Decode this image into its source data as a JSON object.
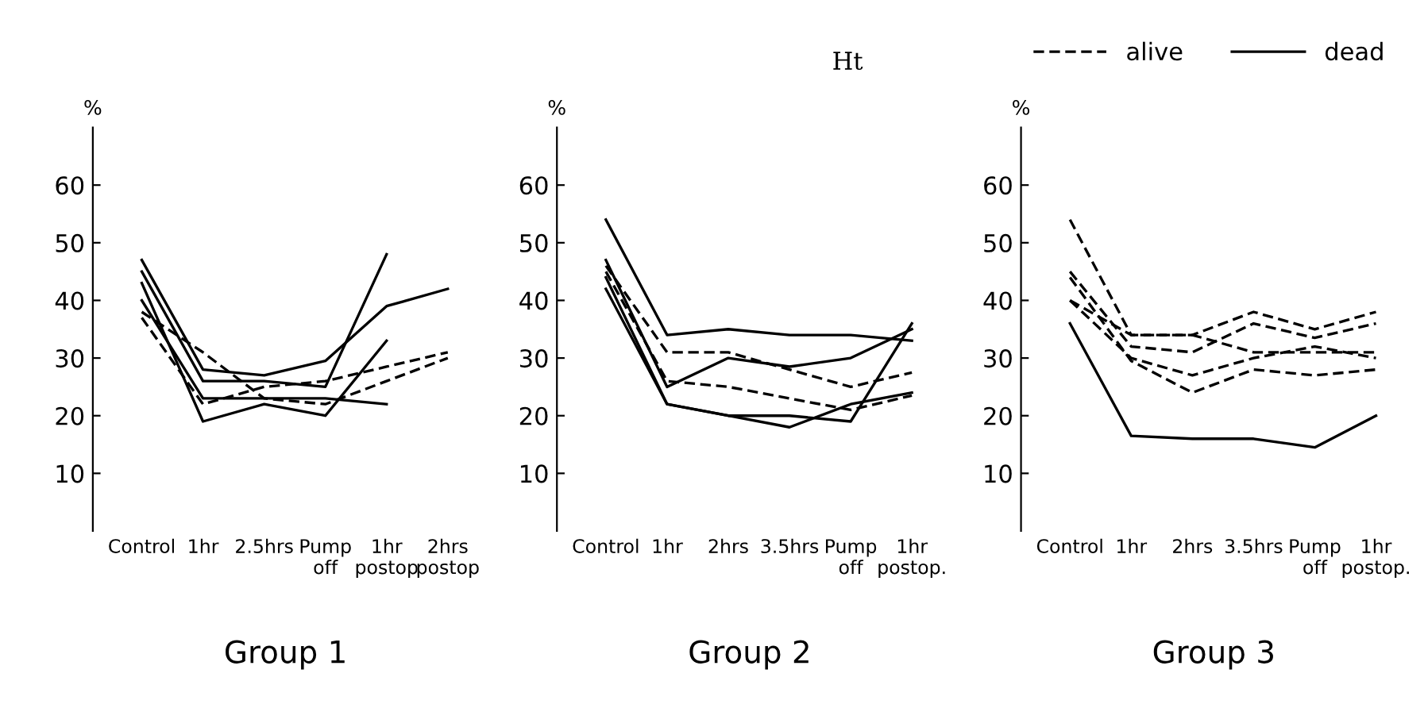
{
  "chart_data": [
    {
      "type": "line",
      "xlabel": "Group 1",
      "ylabel": "%",
      "categories": [
        "Control",
        "1hr",
        "2.5hrs",
        "Pump\noff",
        "1hr\npostop",
        "2hrs\npostop"
      ],
      "ylim": [
        0,
        70
      ],
      "yticks": [
        10,
        20,
        30,
        40,
        50,
        60
      ],
      "grid": false,
      "legend": false,
      "series": [
        {
          "color": "#000000",
          "line_style": "solid",
          "values": [
            47,
            28,
            27,
            29.5,
            39,
            42
          ]
        },
        {
          "color": "#000000",
          "line_style": "solid",
          "values": [
            45,
            26,
            26,
            25,
            48,
            null
          ]
        },
        {
          "color": "#000000",
          "line_style": "solid",
          "values": [
            43,
            19,
            22,
            20,
            33,
            null
          ]
        },
        {
          "color": "#000000",
          "line_style": "solid",
          "values": [
            40,
            23,
            23,
            23,
            22,
            null
          ]
        },
        {
          "color": "#000000",
          "line_style": "dashed",
          "values": [
            38,
            31,
            23,
            22,
            26,
            30
          ]
        },
        {
          "color": "#000000",
          "line_style": "dashed",
          "values": [
            37,
            22,
            25,
            26,
            28.5,
            31
          ]
        }
      ]
    },
    {
      "type": "line",
      "xlabel": "Group 2",
      "ylabel": "%",
      "categories": [
        "Control",
        "1hr",
        "2hrs",
        "3.5hrs",
        "Pump\noff",
        "1hr\npostop."
      ],
      "ylim": [
        0,
        70
      ],
      "yticks": [
        10,
        20,
        30,
        40,
        50,
        60
      ],
      "grid": false,
      "legend": false,
      "series": [
        {
          "color": "#000000",
          "line_style": "solid",
          "values": [
            54,
            34,
            35,
            34,
            34,
            33
          ]
        },
        {
          "color": "#000000",
          "line_style": "solid",
          "values": [
            47,
            25,
            30,
            28.5,
            30,
            35
          ]
        },
        {
          "color": "#000000",
          "line_style": "solid",
          "values": [
            44,
            22,
            20,
            18,
            22,
            24
          ]
        },
        {
          "color": "#000000",
          "line_style": "solid",
          "values": [
            42,
            22,
            20,
            20,
            19,
            36
          ]
        },
        {
          "color": "#000000",
          "line_style": "dashed",
          "values": [
            46,
            31,
            31,
            28,
            25,
            27.5
          ]
        },
        {
          "color": "#000000",
          "line_style": "dashed",
          "values": [
            45,
            26,
            25,
            23,
            21,
            23.5
          ]
        }
      ]
    },
    {
      "type": "line",
      "xlabel": "Group 3",
      "ylabel": "%",
      "legend_title": "Ht",
      "categories": [
        "Control",
        "1hr",
        "2hrs",
        "3.5hrs",
        "Pump\noff",
        "1hr\npostop."
      ],
      "ylim": [
        0,
        70
      ],
      "yticks": [
        10,
        20,
        30,
        40,
        50,
        60
      ],
      "grid": false,
      "legend": "top",
      "series": [
        {
          "name": "alive",
          "color": "#000000",
          "line_style": "dashed",
          "values": [
            54,
            34,
            34,
            31,
            31,
            31
          ]
        },
        {
          "color": "#000000",
          "line_style": "dashed",
          "values": [
            45,
            32,
            31,
            36,
            33.5,
            36
          ]
        },
        {
          "color": "#000000",
          "line_style": "dashed",
          "values": [
            40,
            34,
            34,
            38,
            35,
            38
          ]
        },
        {
          "color": "#000000",
          "line_style": "dashed",
          "values": [
            40,
            30,
            27,
            30,
            32,
            30
          ]
        },
        {
          "color": "#000000",
          "line_style": "dashed",
          "values": [
            44,
            29.5,
            24,
            28,
            27,
            28
          ]
        },
        {
          "name": "dead",
          "color": "#000000",
          "line_style": "solid",
          "values": [
            36,
            16.5,
            16,
            16,
            14.5,
            20
          ]
        }
      ]
    }
  ]
}
